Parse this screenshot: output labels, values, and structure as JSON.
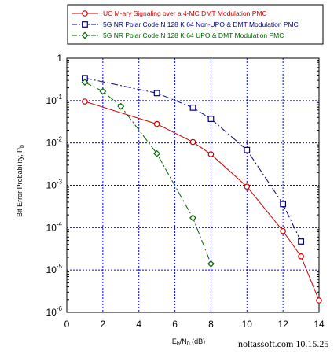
{
  "chart_data": {
    "type": "line",
    "title": "",
    "xlabel": {
      "base": "E",
      "sub1": "b",
      "mid": "/N",
      "sub2": "0",
      "unit": " (dB)"
    },
    "ylabel": {
      "base": "Bit Error Probability, P",
      "sub": "b"
    },
    "xlim": [
      0,
      14
    ],
    "ylim": [
      1e-06,
      1
    ],
    "yscale": "log",
    "grid": true,
    "legend_position": "top",
    "xticks": [
      "0",
      "2",
      "4",
      "6",
      "8",
      "10",
      "12",
      "14"
    ],
    "yticks": [
      {
        "base": "10",
        "exp": "-6"
      },
      {
        "base": "10",
        "exp": "-5"
      },
      {
        "base": "10",
        "exp": "-4"
      },
      {
        "base": "10",
        "exp": "-3"
      },
      {
        "base": "10",
        "exp": "-2"
      },
      {
        "base": "10",
        "exp": "-1"
      },
      {
        "base": "1",
        "exp": ""
      }
    ],
    "series": [
      {
        "name": "UC M-ary Signaling over a 4-MC DMT Modulation PMC",
        "color": "#cc0000",
        "marker": "circle",
        "dash": "solid",
        "points": [
          {
            "x": 1,
            "y": 0.095
          },
          {
            "x": 5,
            "y": 0.028
          },
          {
            "x": 7,
            "y": 0.0105
          },
          {
            "x": 8,
            "y": 0.0054
          },
          {
            "x": 10,
            "y": 0.00093
          },
          {
            "x": 12,
            "y": 8.3e-05
          },
          {
            "x": 13,
            "y": 2.1e-05
          },
          {
            "x": 14,
            "y": 1.9e-06
          }
        ]
      },
      {
        "name": "5G NR Polar Code N 128 K 64 Non-UPO & DMT Modulation PMC",
        "color": "#000080",
        "marker": "square",
        "dash": "dashdot",
        "points": [
          {
            "x": 1,
            "y": 0.34
          },
          {
            "x": 5,
            "y": 0.15
          },
          {
            "x": 7,
            "y": 0.068
          },
          {
            "x": 8,
            "y": 0.037
          },
          {
            "x": 10,
            "y": 0.0068
          },
          {
            "x": 12,
            "y": 0.00036
          },
          {
            "x": 13,
            "y": 4.7e-05
          }
        ]
      },
      {
        "name": "5G NR Polar Code N 128 K 64 UPO & DMT Modulation PMC",
        "color": "#006400",
        "marker": "diamond",
        "dash": "dashdot",
        "points": [
          {
            "x": 1,
            "y": 0.27
          },
          {
            "x": 2,
            "y": 0.165
          },
          {
            "x": 3,
            "y": 0.073
          },
          {
            "x": 5,
            "y": 0.0056
          },
          {
            "x": 7,
            "y": 0.00017
          },
          {
            "x": 8,
            "y": 1.4e-05
          }
        ]
      }
    ]
  },
  "watermark": "noltassoft.com 10.15.25"
}
